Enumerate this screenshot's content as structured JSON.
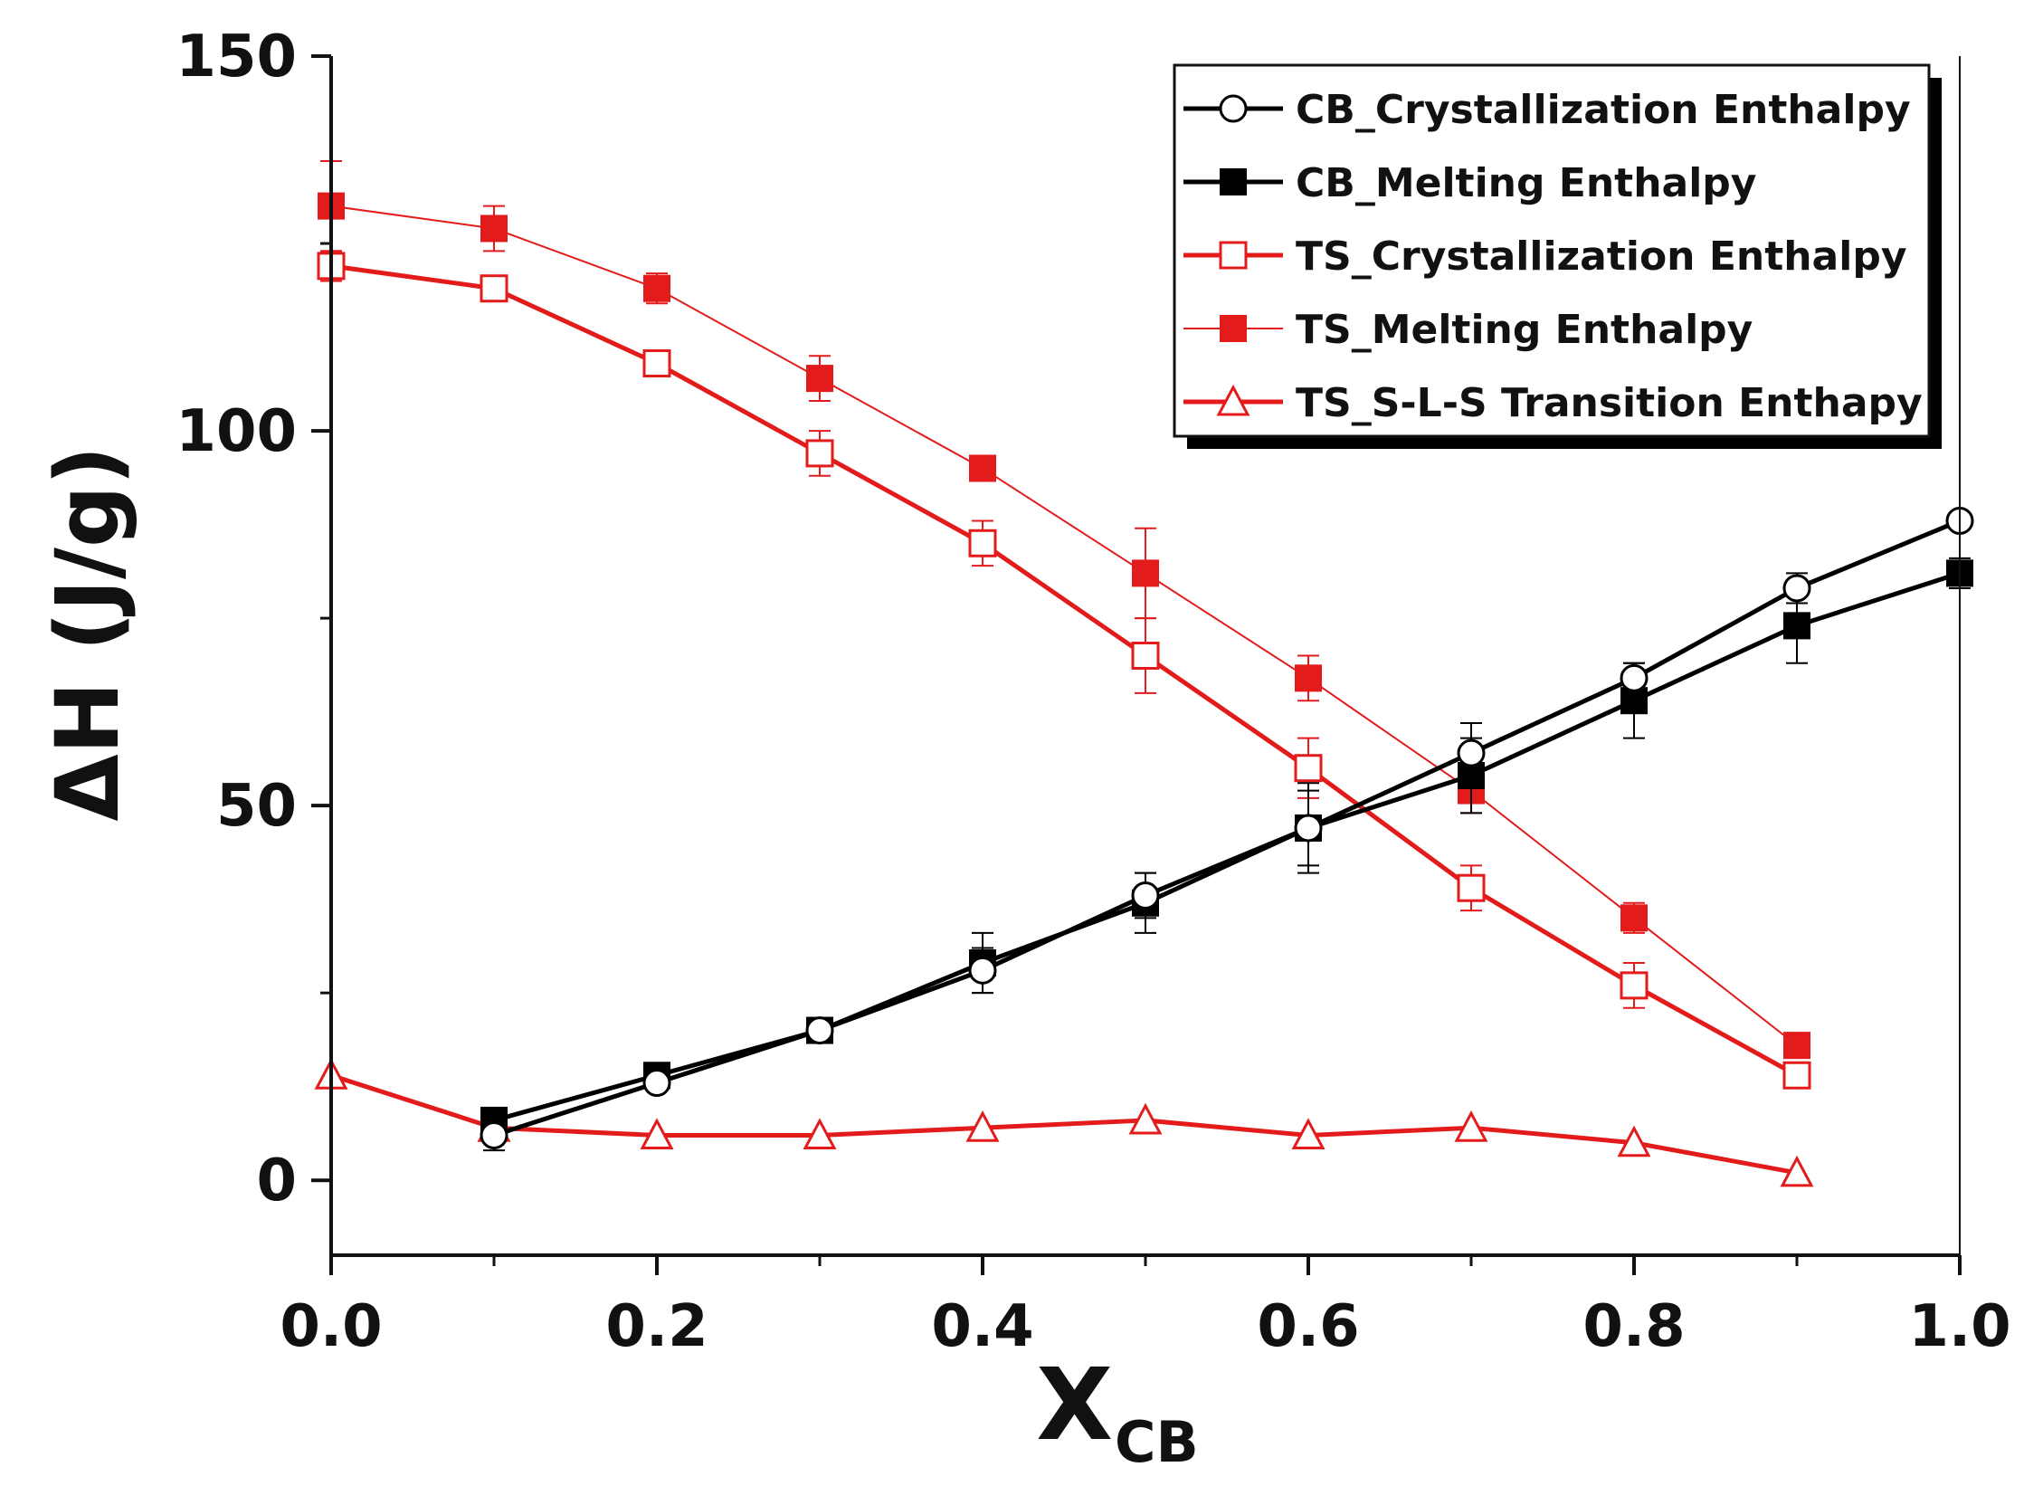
{
  "chart_data": {
    "type": "line",
    "xlabel_main": "X",
    "xlabel_sub": "CB",
    "ylabel": "ΔH (J/g)",
    "xlim": [
      0.0,
      1.0
    ],
    "ylim": [
      -10,
      150
    ],
    "xticks": [
      0.0,
      0.2,
      0.4,
      0.6,
      0.8,
      1.0
    ],
    "xtick_labels": [
      "0.0",
      "0.2",
      "0.4",
      "0.6",
      "0.8",
      "1.0"
    ],
    "yticks": [
      0,
      50,
      100,
      150
    ],
    "ytick_labels": [
      "0",
      "50",
      "100",
      "150"
    ],
    "legend_position": "top-right",
    "series": [
      {
        "name": "CB_Crystallization Enthalpy",
        "color": "#000000",
        "marker": "circle-open",
        "line": "thick",
        "x": [
          0.1,
          0.2,
          0.3,
          0.4,
          0.5,
          0.6,
          0.7,
          0.8,
          0.9,
          1.0
        ],
        "y": [
          6,
          13,
          20,
          28,
          38,
          47,
          57,
          67,
          79,
          88
        ],
        "err": [
          2,
          1,
          1,
          3,
          3,
          5,
          4,
          2,
          2,
          1
        ]
      },
      {
        "name": "CB_Melting Enthalpy",
        "color": "#000000",
        "marker": "square-filled",
        "line": "thick",
        "x": [
          0.1,
          0.2,
          0.3,
          0.4,
          0.5,
          0.6,
          0.7,
          0.8,
          0.9,
          1.0
        ],
        "y": [
          8,
          14,
          20,
          29,
          37,
          47,
          54,
          64,
          74,
          81
        ],
        "err": [
          1,
          1,
          1,
          4,
          4,
          6,
          5,
          5,
          5,
          2
        ]
      },
      {
        "name": "TS_Crystallization Enthalpy",
        "color": "#e31b1b",
        "marker": "square-open",
        "line": "thick",
        "x": [
          0.0,
          0.1,
          0.2,
          0.3,
          0.4,
          0.5,
          0.6,
          0.7,
          0.8,
          0.9
        ],
        "y": [
          122,
          119,
          109,
          97,
          85,
          70,
          55,
          39,
          26,
          14
        ],
        "err": [
          2,
          1,
          1,
          3,
          3,
          5,
          4,
          3,
          3,
          1
        ]
      },
      {
        "name": "TS_Melting Enthalpy",
        "color": "#e31b1b",
        "marker": "square-filled",
        "line": "thin",
        "x": [
          0.0,
          0.1,
          0.2,
          0.3,
          0.4,
          0.5,
          0.6,
          0.7,
          0.8,
          0.9
        ],
        "y": [
          130,
          127,
          119,
          107,
          95,
          81,
          67,
          52,
          35,
          18
        ],
        "err": [
          6,
          3,
          2,
          3,
          1,
          6,
          3,
          3,
          2,
          1
        ]
      },
      {
        "name": "TS_S-L-S Transition Enthapy",
        "color": "#e31b1b",
        "marker": "triangle-open",
        "line": "thick",
        "x": [
          0.0,
          0.1,
          0.2,
          0.3,
          0.4,
          0.5,
          0.6,
          0.7,
          0.8,
          0.9
        ],
        "y": [
          14,
          7,
          6,
          6,
          7,
          8,
          6,
          7,
          5,
          1
        ],
        "err": [
          0,
          0,
          0,
          0,
          0,
          0,
          0,
          0,
          0,
          0
        ]
      }
    ]
  }
}
